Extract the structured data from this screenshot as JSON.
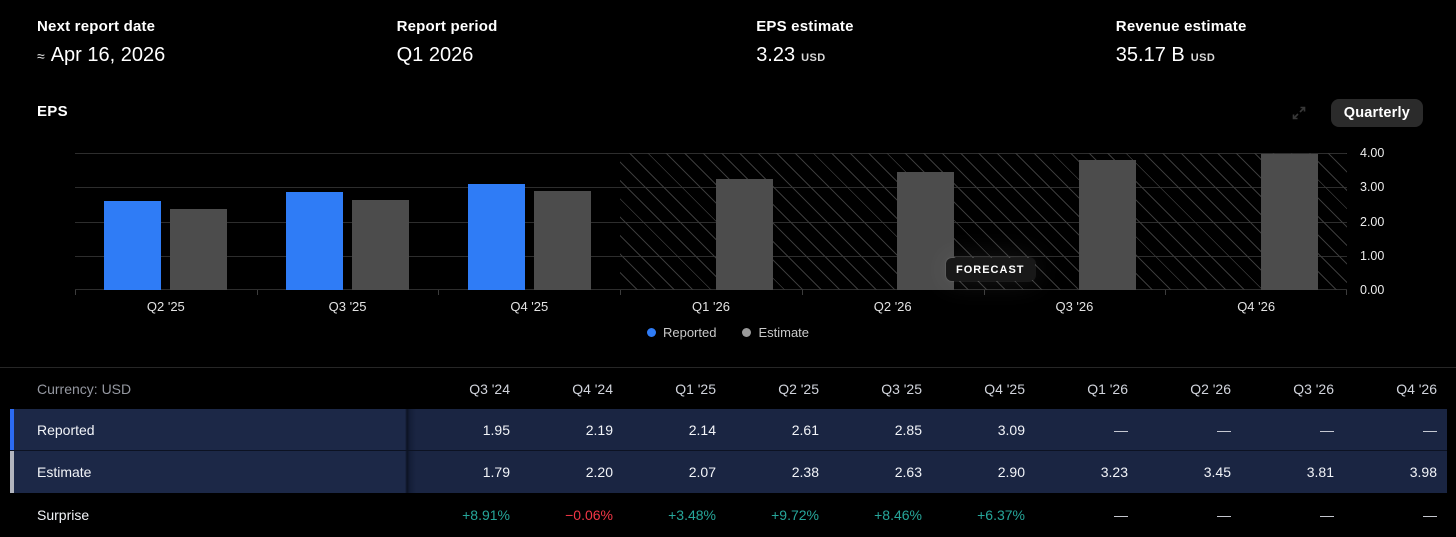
{
  "stats": [
    {
      "label": "Next report date",
      "prefix": "≈",
      "value": "Apr 16, 2026",
      "unit": ""
    },
    {
      "label": "Report period",
      "prefix": "",
      "value": "Q1 2026",
      "unit": ""
    },
    {
      "label": "EPS estimate",
      "prefix": "",
      "value": "3.23",
      "unit": "USD"
    },
    {
      "label": "Revenue estimate",
      "prefix": "",
      "value": "35.17 B",
      "unit": "USD"
    }
  ],
  "chart": {
    "title": "EPS",
    "period_button": "Quarterly",
    "forecast_label": "FORECAST",
    "legend": [
      {
        "label": "Reported",
        "color": "#2f7cf6"
      },
      {
        "label": "Estimate",
        "color": "#9a9a9a"
      }
    ],
    "colors": {
      "reported_bar": "#2f7cf6",
      "estimate_bar": "#4c4c4c"
    }
  },
  "chart_data": {
    "type": "bar",
    "title": "EPS",
    "categories": [
      "Q2 '25",
      "Q3 '25",
      "Q4 '25",
      "Q1 '26",
      "Q2 '26",
      "Q3 '26",
      "Q4 '26"
    ],
    "series": [
      {
        "name": "Reported",
        "values": [
          2.61,
          2.85,
          3.09,
          null,
          null,
          null,
          null
        ]
      },
      {
        "name": "Estimate",
        "values": [
          2.38,
          2.63,
          2.9,
          3.23,
          3.45,
          3.81,
          3.98
        ]
      }
    ],
    "forecast_from_category": "Q1 '26",
    "ylim": [
      0,
      4
    ],
    "yticks": [
      "4.00",
      "3.00",
      "2.00",
      "1.00",
      "0.00"
    ],
    "grid": true,
    "legend_position": "bottom"
  },
  "table": {
    "currency_label": "Currency: USD",
    "columns": [
      "Q3 '24",
      "Q4 '24",
      "Q1 '25",
      "Q2 '25",
      "Q3 '25",
      "Q4 '25",
      "Q1 '26",
      "Q2 '26",
      "Q3 '26",
      "Q4 '26"
    ],
    "rows": [
      {
        "key": "reported",
        "label": "Reported",
        "cells": [
          "1.95",
          "2.19",
          "2.14",
          "2.61",
          "2.85",
          "3.09",
          "—",
          "—",
          "—",
          "—"
        ]
      },
      {
        "key": "estimate",
        "label": "Estimate",
        "cells": [
          "1.79",
          "2.20",
          "2.07",
          "2.38",
          "2.63",
          "2.90",
          "3.23",
          "3.45",
          "3.81",
          "3.98"
        ]
      },
      {
        "key": "surprise",
        "label": "Surprise",
        "cells": [
          "+8.91%",
          "−0.06%",
          "+3.48%",
          "+9.72%",
          "+8.46%",
          "+6.37%",
          "—",
          "—",
          "—",
          "—"
        ]
      }
    ],
    "status_colors": {
      "positive": "#26a69a",
      "negative": "#f23645"
    }
  }
}
